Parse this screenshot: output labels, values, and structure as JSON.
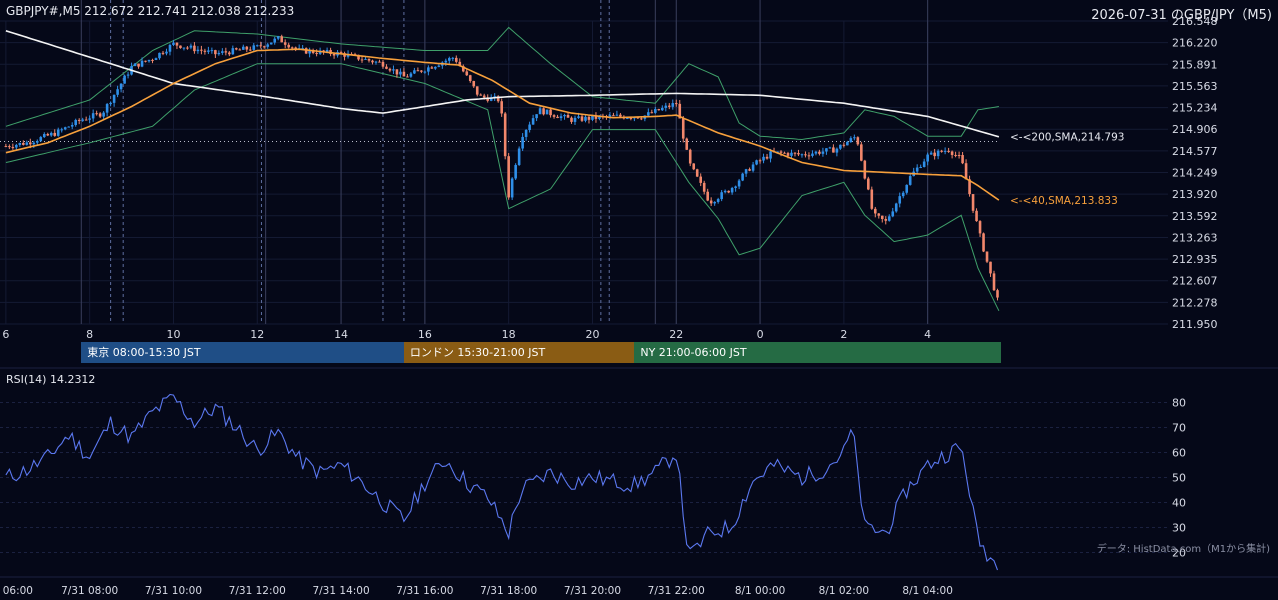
{
  "header": {
    "symbol_ohlc": "GBPJPY#,M5 212.672 212.741 212.038 212.233",
    "stamp": "2026-07-31 のGBP/JPY（M5)"
  },
  "sessions": [
    {
      "label": "東京 08:00-15:30 JST",
      "color": "#1f4e86"
    },
    {
      "label": "ロンドン 15:30-21:00 JST",
      "color": "#8a5c14"
    },
    {
      "label": "NY 21:00-06:00 JST",
      "color": "#256b44"
    }
  ],
  "rsi_label": "RSI(14) 14.2312",
  "credit": "データ: HistData.com（M1から集計)",
  "colors": {
    "background": "#050818",
    "up_candle": "#2f8fe8",
    "down_candle": "#f2876c",
    "sma200": "#f4f4f4",
    "sma40": "#f7a03c",
    "bollinger": "#3fa06a",
    "rsi": "#5b78f0"
  },
  "chart_data": [
    {
      "type": "candlestick",
      "title": "GBPJPY#,M5",
      "timeframe": "M5",
      "x_tick_labels": [
        "6",
        "8",
        "10",
        "12",
        "14",
        "16",
        "18",
        "20",
        "22",
        "0",
        "2",
        "4"
      ],
      "x_hours": [
        6,
        8,
        10,
        12,
        14,
        16,
        18,
        20,
        22,
        24,
        26,
        28
      ],
      "x_range_hours": [
        6,
        29.7
      ],
      "y_ticks": [
        216.548,
        216.22,
        215.891,
        215.563,
        215.234,
        214.906,
        214.577,
        214.249,
        213.92,
        213.592,
        213.263,
        212.935,
        212.607,
        212.278,
        211.95
      ],
      "ylim": [
        211.95,
        216.548
      ],
      "price_anchors": [
        [
          6.0,
          214.65
        ],
        [
          6.5,
          214.7
        ],
        [
          7.2,
          214.85
        ],
        [
          7.8,
          215.05
        ],
        [
          8.3,
          215.15
        ],
        [
          9.0,
          215.85
        ],
        [
          9.5,
          215.98
        ],
        [
          10.0,
          216.2
        ],
        [
          11.0,
          216.05
        ],
        [
          12.0,
          216.15
        ],
        [
          12.5,
          216.28
        ],
        [
          13.0,
          216.1
        ],
        [
          14.0,
          216.05
        ],
        [
          15.0,
          215.9
        ],
        [
          15.5,
          215.7
        ],
        [
          16.0,
          215.82
        ],
        [
          16.7,
          216.0
        ],
        [
          17.3,
          215.4
        ],
        [
          17.8,
          215.35
        ],
        [
          18.0,
          213.9
        ],
        [
          18.3,
          214.8
        ],
        [
          18.7,
          215.2
        ],
        [
          19.5,
          215.05
        ],
        [
          20.5,
          215.1
        ],
        [
          21.2,
          215.1
        ],
        [
          22.0,
          215.3
        ],
        [
          22.3,
          214.4
        ],
        [
          22.8,
          213.8
        ],
        [
          23.3,
          214.0
        ],
        [
          23.8,
          214.35
        ],
        [
          24.3,
          214.55
        ],
        [
          25.0,
          214.52
        ],
        [
          25.8,
          214.6
        ],
        [
          26.3,
          214.8
        ],
        [
          26.7,
          213.6
        ],
        [
          27.0,
          213.5
        ],
        [
          27.6,
          214.2
        ],
        [
          28.0,
          214.5
        ],
        [
          28.5,
          214.6
        ],
        [
          28.8,
          214.45
        ],
        [
          29.2,
          213.4
        ],
        [
          29.5,
          212.7
        ],
        [
          29.7,
          212.23
        ]
      ],
      "sma40_anchors": [
        [
          6.0,
          214.55
        ],
        [
          7.0,
          214.7
        ],
        [
          8.0,
          214.95
        ],
        [
          9.0,
          215.25
        ],
        [
          10.0,
          215.6
        ],
        [
          11.0,
          215.9
        ],
        [
          12.0,
          216.1
        ],
        [
          13.0,
          216.12
        ],
        [
          14.0,
          216.05
        ],
        [
          15.0,
          215.98
        ],
        [
          16.0,
          215.92
        ],
        [
          16.8,
          215.88
        ],
        [
          17.6,
          215.65
        ],
        [
          18.5,
          215.3
        ],
        [
          19.5,
          215.15
        ],
        [
          20.5,
          215.08
        ],
        [
          21.5,
          215.1
        ],
        [
          22.0,
          215.12
        ],
        [
          23.0,
          214.85
        ],
        [
          24.0,
          214.65
        ],
        [
          25.0,
          214.4
        ],
        [
          26.0,
          214.28
        ],
        [
          27.0,
          214.25
        ],
        [
          28.0,
          214.22
        ],
        [
          28.8,
          214.2
        ],
        [
          29.2,
          214.05
        ],
        [
          29.7,
          213.83
        ]
      ],
      "sma200_anchors": [
        [
          6.0,
          216.4
        ],
        [
          8.0,
          216.0
        ],
        [
          10.0,
          215.6
        ],
        [
          12.0,
          215.42
        ],
        [
          14.0,
          215.22
        ],
        [
          15.0,
          215.15
        ],
        [
          16.0,
          215.25
        ],
        [
          17.0,
          215.35
        ],
        [
          18.0,
          215.4
        ],
        [
          20.0,
          215.42
        ],
        [
          22.0,
          215.45
        ],
        [
          24.0,
          215.42
        ],
        [
          26.0,
          215.3
        ],
        [
          28.0,
          215.1
        ],
        [
          29.7,
          214.79
        ]
      ],
      "bollinger_upper_anchors": [
        [
          6.0,
          214.95
        ],
        [
          8.0,
          215.35
        ],
        [
          9.5,
          216.1
        ],
        [
          10.5,
          216.4
        ],
        [
          12.0,
          216.35
        ],
        [
          14.0,
          216.2
        ],
        [
          16.0,
          216.1
        ],
        [
          17.5,
          216.1
        ],
        [
          18.0,
          216.45
        ],
        [
          19.0,
          215.9
        ],
        [
          20.0,
          215.4
        ],
        [
          21.5,
          215.3
        ],
        [
          22.3,
          215.9
        ],
        [
          23.0,
          215.7
        ],
        [
          23.5,
          215.0
        ],
        [
          24.0,
          214.8
        ],
        [
          25.0,
          214.75
        ],
        [
          26.0,
          214.85
        ],
        [
          26.5,
          215.2
        ],
        [
          27.2,
          215.1
        ],
        [
          28.0,
          214.8
        ],
        [
          28.8,
          214.8
        ],
        [
          29.2,
          215.2
        ],
        [
          29.7,
          215.25
        ]
      ],
      "bollinger_lower_anchors": [
        [
          6.0,
          214.4
        ],
        [
          8.0,
          214.7
        ],
        [
          9.5,
          214.95
        ],
        [
          10.5,
          215.5
        ],
        [
          12.0,
          215.9
        ],
        [
          14.0,
          215.9
        ],
        [
          16.0,
          215.6
        ],
        [
          17.5,
          215.2
        ],
        [
          18.0,
          213.7
        ],
        [
          19.0,
          214.0
        ],
        [
          20.0,
          214.9
        ],
        [
          21.5,
          214.9
        ],
        [
          22.3,
          214.1
        ],
        [
          23.0,
          213.55
        ],
        [
          23.5,
          213.0
        ],
        [
          24.0,
          213.1
        ],
        [
          25.0,
          213.9
        ],
        [
          26.0,
          214.1
        ],
        [
          26.5,
          213.6
        ],
        [
          27.2,
          213.2
        ],
        [
          28.0,
          213.3
        ],
        [
          28.8,
          213.6
        ],
        [
          29.2,
          212.8
        ],
        [
          29.7,
          212.15
        ]
      ],
      "hline": 214.72,
      "annotations": [
        {
          "label": "<-<200,SMA,214.793",
          "y": 214.793,
          "color": "#e6e8ef"
        },
        {
          "label": "<-<40,SMA,213.833",
          "y": 213.833,
          "color": "#f7a03c"
        }
      ],
      "vlines_dashed": [
        8.5,
        8.8,
        12.1,
        15.0,
        15.5,
        20.2,
        20.4
      ],
      "vlines_solid": [
        7.8,
        12.2,
        14.0,
        16.0,
        21.5,
        22.0,
        24.0,
        28.0
      ]
    },
    {
      "type": "line",
      "title": "RSI(14) 14.2312",
      "ylim": [
        13,
        85
      ],
      "y_ticks": [
        80,
        70,
        60,
        50,
        40,
        30,
        20
      ],
      "x_tick_labels": [
        "06:00",
        "7/31 08:00",
        "7/31 10:00",
        "7/31 12:00",
        "7/31 14:00",
        "7/31 16:00",
        "7/31 18:00",
        "7/31 20:00",
        "7/31 22:00",
        "8/1 00:00",
        "8/1 02:00",
        "8/1 04:00"
      ],
      "rsi_anchors": [
        [
          6.0,
          50
        ],
        [
          6.5,
          53
        ],
        [
          7.0,
          58
        ],
        [
          7.5,
          67
        ],
        [
          8.0,
          58
        ],
        [
          8.5,
          72
        ],
        [
          9.0,
          66
        ],
        [
          9.5,
          76
        ],
        [
          10.0,
          82
        ],
        [
          10.5,
          72
        ],
        [
          11.0,
          78
        ],
        [
          11.5,
          70
        ],
        [
          12.0,
          61
        ],
        [
          12.5,
          68
        ],
        [
          13.0,
          57
        ],
        [
          13.5,
          52
        ],
        [
          14.0,
          55
        ],
        [
          14.5,
          48
        ],
        [
          15.0,
          40
        ],
        [
          15.5,
          33
        ],
        [
          16.0,
          48
        ],
        [
          16.5,
          57
        ],
        [
          17.0,
          48
        ],
        [
          17.5,
          42
        ],
        [
          18.0,
          28
        ],
        [
          18.3,
          45
        ],
        [
          19.0,
          52
        ],
        [
          19.5,
          48
        ],
        [
          20.0,
          50
        ],
        [
          21.0,
          47
        ],
        [
          21.5,
          52
        ],
        [
          22.0,
          60
        ],
        [
          22.3,
          18
        ],
        [
          22.8,
          28
        ],
        [
          23.3,
          30
        ],
        [
          23.8,
          48
        ],
        [
          24.3,
          55
        ],
        [
          25.0,
          50
        ],
        [
          25.5,
          53
        ],
        [
          26.0,
          60
        ],
        [
          26.2,
          70
        ],
        [
          26.5,
          30
        ],
        [
          27.0,
          28
        ],
        [
          27.5,
          45
        ],
        [
          28.0,
          55
        ],
        [
          28.5,
          60
        ],
        [
          28.8,
          62
        ],
        [
          29.0,
          45
        ],
        [
          29.2,
          25
        ],
        [
          29.5,
          18
        ],
        [
          29.7,
          14
        ]
      ]
    }
  ]
}
